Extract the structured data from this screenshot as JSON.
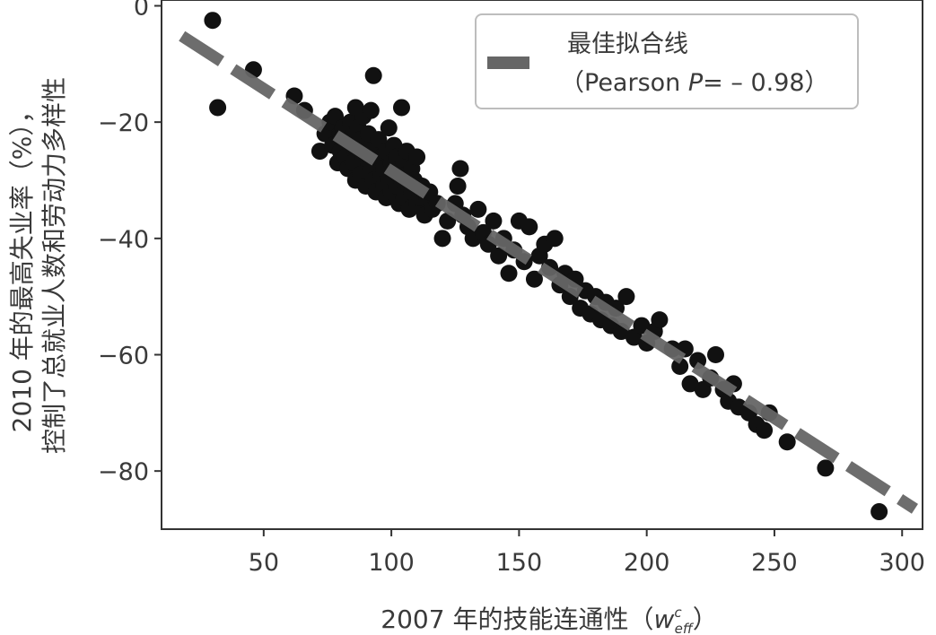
{
  "chart_data": {
    "type": "scatter",
    "xlabel": "2007 年的技能连通性（",
    "xlabel_symbol": "w",
    "xlabel_sup": "c",
    "xlabel_sub": "eff",
    "xlabel_close": "）",
    "ylabel_line1": "2010 年的最高失业率（%），",
    "ylabel_line2": "控制了总就业人数和劳动力多样性",
    "xlim": [
      10,
      308
    ],
    "ylim": [
      -90,
      1
    ],
    "x_ticks": [
      50,
      100,
      150,
      200,
      250,
      300
    ],
    "y_ticks": [
      0,
      -20,
      -40,
      -60,
      -80
    ],
    "grid": false,
    "legend": {
      "placement": "top-right",
      "label_line1": "最佳拟合线",
      "label_line2_prefix": "（Pearson ",
      "label_line2_italic": "P",
      "label_line2_suffix": "= – 0.98）"
    },
    "fit_line": {
      "x": [
        18,
        305
      ],
      "y": [
        -5.2,
        -86.5
      ]
    },
    "colors": {
      "points": "#111111",
      "fit_line": "#666666",
      "axis": "#333333"
    },
    "series": [
      {
        "points": [
          [
            30,
            -2.5
          ],
          [
            32,
            -17.5
          ],
          [
            46,
            -11
          ],
          [
            62,
            -15.5
          ],
          [
            66,
            -18
          ],
          [
            72,
            -25
          ],
          [
            74,
            -22
          ],
          [
            76,
            -20
          ],
          [
            77,
            -24
          ],
          [
            78,
            -19
          ],
          [
            79,
            -27
          ],
          [
            80,
            -22
          ],
          [
            80,
            -25
          ],
          [
            81,
            -21
          ],
          [
            82,
            -23
          ],
          [
            82,
            -26
          ],
          [
            83,
            -28
          ],
          [
            84,
            -20
          ],
          [
            84,
            -24
          ],
          [
            85,
            -27
          ],
          [
            85,
            -22
          ],
          [
            86,
            -30
          ],
          [
            86,
            -17.5
          ],
          [
            87,
            -25
          ],
          [
            87,
            -21
          ],
          [
            88,
            -29
          ],
          [
            88,
            -23
          ],
          [
            89,
            -26
          ],
          [
            89,
            -19
          ],
          [
            90,
            -31
          ],
          [
            90,
            -24
          ],
          [
            91,
            -27
          ],
          [
            91,
            -22
          ],
          [
            92,
            -28
          ],
          [
            92,
            -18
          ],
          [
            93,
            -12
          ],
          [
            93,
            -30
          ],
          [
            94,
            -25
          ],
          [
            94,
            -32
          ],
          [
            95,
            -27
          ],
          [
            95,
            -23
          ],
          [
            96,
            -29
          ],
          [
            96,
            -26
          ],
          [
            97,
            -31
          ],
          [
            97,
            -28
          ],
          [
            98,
            -25
          ],
          [
            98,
            -33
          ],
          [
            99,
            -21
          ],
          [
            99,
            -30
          ],
          [
            100,
            -27
          ],
          [
            100,
            -32
          ],
          [
            101,
            -29
          ],
          [
            101,
            -24
          ],
          [
            102,
            -31
          ],
          [
            102,
            -26
          ],
          [
            103,
            -34
          ],
          [
            103,
            -28
          ],
          [
            104,
            -17.5
          ],
          [
            104,
            -30
          ],
          [
            105,
            -27
          ],
          [
            105,
            -33
          ],
          [
            106,
            -29
          ],
          [
            106,
            -25
          ],
          [
            107,
            -31
          ],
          [
            107,
            -35
          ],
          [
            108,
            -28
          ],
          [
            108,
            -32
          ],
          [
            109,
            -30
          ],
          [
            110,
            -26
          ],
          [
            110,
            -34
          ],
          [
            111,
            -33
          ],
          [
            112,
            -31
          ],
          [
            113,
            -36
          ],
          [
            114,
            -33
          ],
          [
            115,
            -32
          ],
          [
            116,
            -35
          ],
          [
            118,
            -34
          ],
          [
            120,
            -40
          ],
          [
            122,
            -37
          ],
          [
            125,
            -34
          ],
          [
            126,
            -31
          ],
          [
            127,
            -28
          ],
          [
            128,
            -36
          ],
          [
            130,
            -38
          ],
          [
            132,
            -40
          ],
          [
            134,
            -35
          ],
          [
            136,
            -39
          ],
          [
            138,
            -41
          ],
          [
            140,
            -37
          ],
          [
            142,
            -43
          ],
          [
            144,
            -40
          ],
          [
            146,
            -46
          ],
          [
            148,
            -42
          ],
          [
            150,
            -37
          ],
          [
            152,
            -44
          ],
          [
            154,
            -38
          ],
          [
            156,
            -47
          ],
          [
            158,
            -43
          ],
          [
            160,
            -41
          ],
          [
            162,
            -45
          ],
          [
            164,
            -40
          ],
          [
            166,
            -48
          ],
          [
            168,
            -46
          ],
          [
            170,
            -50
          ],
          [
            172,
            -47
          ],
          [
            174,
            -52
          ],
          [
            176,
            -49
          ],
          [
            178,
            -53
          ],
          [
            180,
            -50
          ],
          [
            182,
            -54
          ],
          [
            184,
            -51
          ],
          [
            186,
            -55
          ],
          [
            188,
            -52
          ],
          [
            190,
            -56
          ],
          [
            192,
            -50
          ],
          [
            195,
            -57
          ],
          [
            198,
            -55
          ],
          [
            200,
            -58
          ],
          [
            203,
            -56
          ],
          [
            205,
            -54
          ],
          [
            210,
            -59
          ],
          [
            213,
            -62
          ],
          [
            215,
            -59
          ],
          [
            217,
            -65
          ],
          [
            220,
            -61
          ],
          [
            222,
            -66
          ],
          [
            225,
            -64
          ],
          [
            227,
            -60
          ],
          [
            230,
            -66
          ],
          [
            232,
            -68
          ],
          [
            234,
            -65
          ],
          [
            236,
            -69
          ],
          [
            240,
            -70
          ],
          [
            243,
            -72
          ],
          [
            246,
            -73
          ],
          [
            248,
            -70
          ],
          [
            255,
            -75
          ],
          [
            270,
            -79.5
          ],
          [
            291,
            -87
          ]
        ]
      }
    ]
  }
}
